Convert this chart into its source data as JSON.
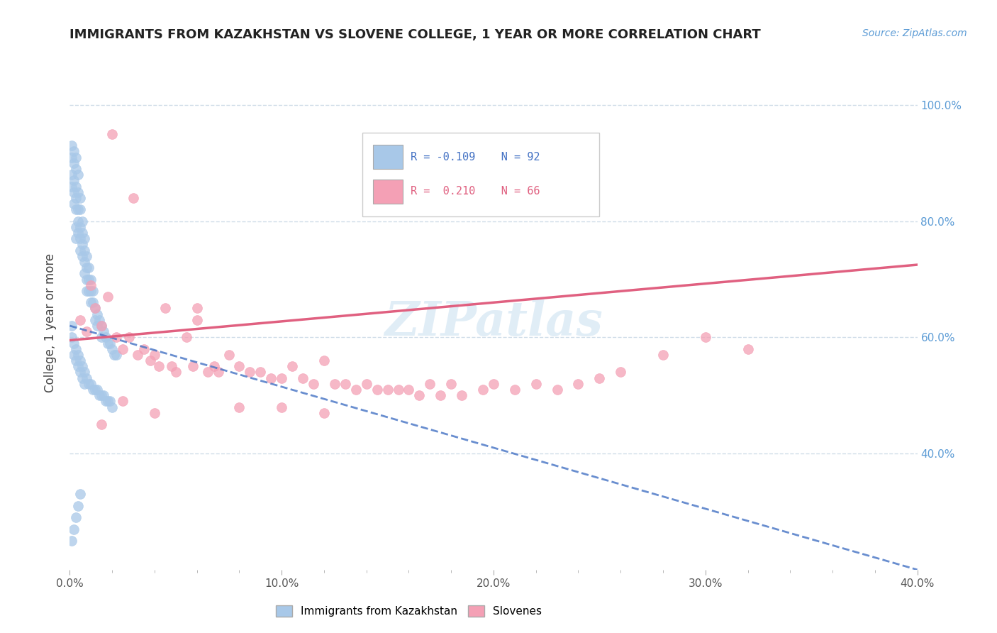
{
  "title": "IMMIGRANTS FROM KAZAKHSTAN VS SLOVENE COLLEGE, 1 YEAR OR MORE CORRELATION CHART",
  "source_text": "Source: ZipAtlas.com",
  "ylabel": "College, 1 year or more",
  "xlim": [
    0.0,
    0.4
  ],
  "ylim": [
    0.2,
    1.05
  ],
  "xtick_labels": [
    "0.0%",
    "",
    "",
    "",
    "",
    "10.0%",
    "",
    "",
    "",
    "",
    "20.0%",
    "",
    "",
    "",
    "",
    "30.0%",
    "",
    "",
    "",
    "",
    "40.0%"
  ],
  "xtick_vals": [
    0.0,
    0.02,
    0.04,
    0.06,
    0.08,
    0.1,
    0.12,
    0.14,
    0.16,
    0.18,
    0.2,
    0.22,
    0.24,
    0.26,
    0.28,
    0.3,
    0.32,
    0.34,
    0.36,
    0.38,
    0.4
  ],
  "ytick_vals": [
    0.4,
    0.6,
    0.8,
    1.0
  ],
  "ytick_labels": [
    "40.0%",
    "60.0%",
    "80.0%",
    "100.0%"
  ],
  "watermark": "ZIPatlas",
  "legend_blue_label": "Immigrants from Kazakhstan",
  "legend_pink_label": "Slovenes",
  "blue_R": -0.109,
  "blue_N": 92,
  "pink_R": 0.21,
  "pink_N": 66,
  "blue_color": "#a8c8e8",
  "pink_color": "#f4a0b5",
  "blue_line_color": "#4472c4",
  "pink_line_color": "#e06080",
  "grid_color": "#d0dde8",
  "background_color": "#ffffff",
  "blue_scatter_x": [
    0.001,
    0.001,
    0.001,
    0.001,
    0.002,
    0.002,
    0.002,
    0.002,
    0.002,
    0.003,
    0.003,
    0.003,
    0.003,
    0.003,
    0.003,
    0.003,
    0.004,
    0.004,
    0.004,
    0.004,
    0.004,
    0.005,
    0.005,
    0.005,
    0.005,
    0.005,
    0.006,
    0.006,
    0.006,
    0.006,
    0.007,
    0.007,
    0.007,
    0.007,
    0.008,
    0.008,
    0.008,
    0.008,
    0.009,
    0.009,
    0.009,
    0.01,
    0.01,
    0.01,
    0.011,
    0.011,
    0.012,
    0.012,
    0.013,
    0.013,
    0.014,
    0.015,
    0.015,
    0.016,
    0.017,
    0.018,
    0.019,
    0.02,
    0.021,
    0.022,
    0.001,
    0.001,
    0.002,
    0.002,
    0.003,
    0.003,
    0.004,
    0.004,
    0.005,
    0.005,
    0.006,
    0.006,
    0.007,
    0.007,
    0.008,
    0.009,
    0.01,
    0.011,
    0.012,
    0.013,
    0.014,
    0.015,
    0.016,
    0.017,
    0.018,
    0.019,
    0.02,
    0.001,
    0.002,
    0.003,
    0.004,
    0.005
  ],
  "blue_scatter_y": [
    0.93,
    0.91,
    0.88,
    0.86,
    0.92,
    0.9,
    0.87,
    0.85,
    0.83,
    0.91,
    0.89,
    0.86,
    0.84,
    0.82,
    0.79,
    0.77,
    0.88,
    0.85,
    0.82,
    0.8,
    0.78,
    0.84,
    0.82,
    0.79,
    0.77,
    0.75,
    0.8,
    0.78,
    0.76,
    0.74,
    0.77,
    0.75,
    0.73,
    0.71,
    0.74,
    0.72,
    0.7,
    0.68,
    0.72,
    0.7,
    0.68,
    0.7,
    0.68,
    0.66,
    0.68,
    0.66,
    0.65,
    0.63,
    0.64,
    0.62,
    0.63,
    0.62,
    0.6,
    0.61,
    0.6,
    0.59,
    0.59,
    0.58,
    0.57,
    0.57,
    0.62,
    0.6,
    0.59,
    0.57,
    0.58,
    0.56,
    0.57,
    0.55,
    0.56,
    0.54,
    0.55,
    0.53,
    0.54,
    0.52,
    0.53,
    0.52,
    0.52,
    0.51,
    0.51,
    0.51,
    0.5,
    0.5,
    0.5,
    0.49,
    0.49,
    0.49,
    0.48,
    0.25,
    0.27,
    0.29,
    0.31,
    0.33
  ],
  "pink_scatter_x": [
    0.005,
    0.008,
    0.01,
    0.012,
    0.015,
    0.018,
    0.02,
    0.022,
    0.025,
    0.028,
    0.03,
    0.032,
    0.035,
    0.038,
    0.04,
    0.042,
    0.045,
    0.048,
    0.05,
    0.055,
    0.058,
    0.06,
    0.065,
    0.068,
    0.07,
    0.075,
    0.08,
    0.085,
    0.09,
    0.095,
    0.1,
    0.105,
    0.11,
    0.115,
    0.12,
    0.125,
    0.13,
    0.135,
    0.14,
    0.145,
    0.15,
    0.155,
    0.16,
    0.165,
    0.17,
    0.175,
    0.18,
    0.185,
    0.195,
    0.2,
    0.21,
    0.22,
    0.23,
    0.24,
    0.25,
    0.26,
    0.28,
    0.3,
    0.32,
    0.015,
    0.025,
    0.04,
    0.06,
    0.08,
    0.1,
    0.12
  ],
  "pink_scatter_y": [
    0.63,
    0.61,
    0.69,
    0.65,
    0.62,
    0.67,
    0.95,
    0.6,
    0.58,
    0.6,
    0.84,
    0.57,
    0.58,
    0.56,
    0.57,
    0.55,
    0.65,
    0.55,
    0.54,
    0.6,
    0.55,
    0.65,
    0.54,
    0.55,
    0.54,
    0.57,
    0.55,
    0.54,
    0.54,
    0.53,
    0.53,
    0.55,
    0.53,
    0.52,
    0.56,
    0.52,
    0.52,
    0.51,
    0.52,
    0.51,
    0.51,
    0.51,
    0.51,
    0.5,
    0.52,
    0.5,
    0.52,
    0.5,
    0.51,
    0.52,
    0.51,
    0.52,
    0.51,
    0.52,
    0.53,
    0.54,
    0.57,
    0.6,
    0.58,
    0.45,
    0.49,
    0.47,
    0.63,
    0.48,
    0.48,
    0.47
  ]
}
